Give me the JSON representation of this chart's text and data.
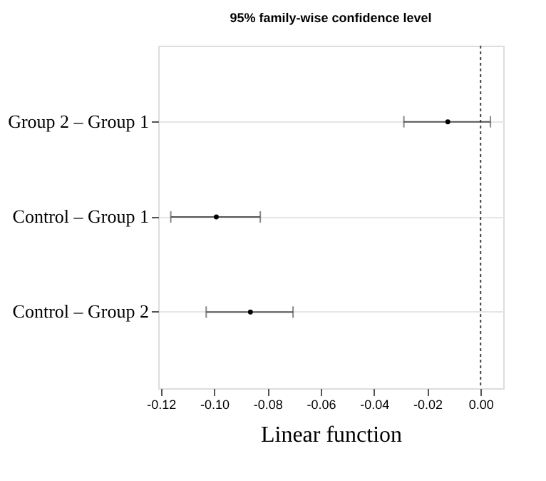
{
  "chart_data": {
    "type": "scatter",
    "orientation": "horizontal",
    "title": "95% family-wise confidence level",
    "xlabel": "Linear function",
    "categories": [
      "Group 2 – Group 1",
      "Control – Group 1",
      "Control – Group 2"
    ],
    "values": [
      -0.0123,
      -0.0992,
      -0.0864
    ],
    "errors": [
      [
        -0.0288,
        0.0037
      ],
      [
        -0.1163,
        -0.0827
      ],
      [
        -0.103,
        -0.0704
      ]
    ],
    "color": "#000000",
    "xlim": [
      -0.121,
      0.0085
    ],
    "xticks": [
      {
        "value": -0.12,
        "label": "-0.12"
      },
      {
        "value": -0.1,
        "label": "-0.10"
      },
      {
        "value": -0.08,
        "label": "-0.08"
      },
      {
        "value": -0.06,
        "label": "-0.06"
      },
      {
        "value": -0.04,
        "label": "-0.04"
      },
      {
        "value": -0.02,
        "label": "-0.02"
      },
      {
        "value": 0,
        "label": "0.00"
      }
    ],
    "ref_lines": [
      {
        "axis": "x",
        "value": 0,
        "color": "#404040",
        "line_style": "dotted"
      }
    ],
    "grid": "y",
    "marker": "circle"
  }
}
